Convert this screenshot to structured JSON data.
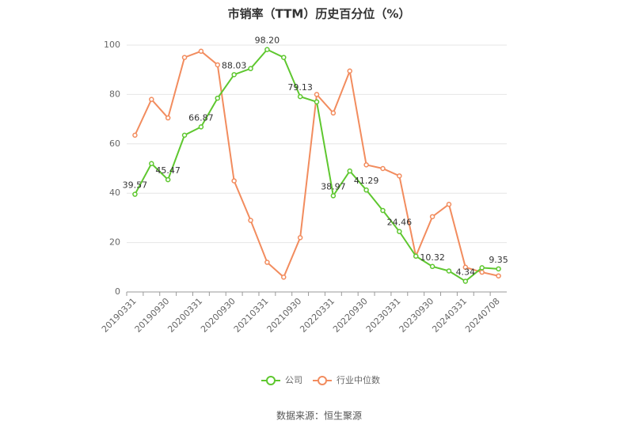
{
  "chart_data": {
    "type": "line",
    "title": "市销率（TTM）历史百分位（%）",
    "categories": [
      "20190331",
      null,
      "20190930",
      null,
      "20200331",
      null,
      "20200930",
      null,
      "20210331",
      null,
      "20210930",
      null,
      "20220331",
      null,
      "20220930",
      null,
      "20230331",
      null,
      "20230930",
      null,
      "20240331",
      null,
      "20240708"
    ],
    "series": [
      {
        "name": "公司",
        "color": "#5ec72f",
        "values": [
          39.57,
          52,
          45.47,
          63.5,
          66.87,
          78.5,
          88.03,
          90.5,
          98.2,
          95,
          79.13,
          77,
          38.97,
          49,
          41.29,
          33,
          24.46,
          14.5,
          10.32,
          8.5,
          4.34,
          9.8,
          9.35
        ],
        "value_labels": [
          "39.57",
          null,
          "45.47",
          null,
          "66.87",
          null,
          "88.03",
          null,
          "98.20",
          null,
          "79.13",
          null,
          "38.97",
          null,
          "41.29",
          null,
          "24.46",
          null,
          "10.32",
          null,
          "4.34",
          null,
          "9.35"
        ]
      },
      {
        "name": "行业中位数",
        "color": "#f28c5e",
        "values": [
          63.5,
          78,
          70.5,
          95,
          97.5,
          92,
          45,
          29,
          12,
          6,
          22,
          80,
          72.5,
          89.5,
          51.5,
          50,
          47,
          14.5,
          30.5,
          35.5,
          10,
          8,
          6.5
        ]
      }
    ],
    "ylim": [
      0,
      100
    ],
    "yticks": [
      0,
      20,
      40,
      60,
      80,
      100
    ],
    "grid": true,
    "source": "数据来源：恒生聚源"
  }
}
